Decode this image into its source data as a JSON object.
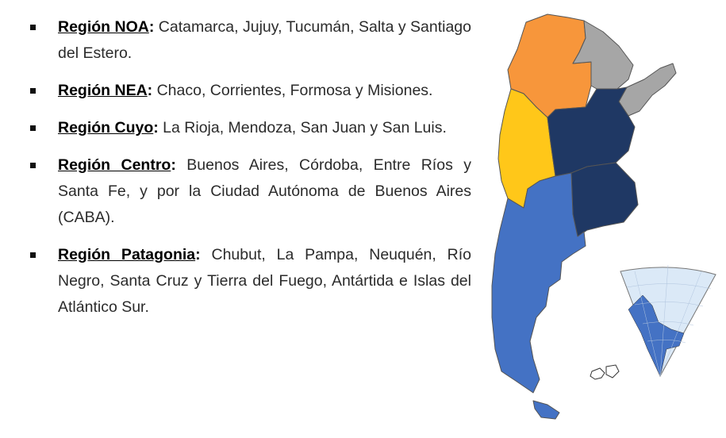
{
  "regions": [
    {
      "name": "Región NOA",
      "text": "Catamarca, Jujuy, Tucumán, Salta y Santiago del Estero."
    },
    {
      "name": "Región NEA",
      "text": "Chaco, Corrientes, Formosa y Misiones."
    },
    {
      "name": "Región Cuyo",
      "text": "La Rioja, Mendoza, San Juan y San Luis."
    },
    {
      "name": "Región Centro",
      "text": "Buenos Aires, Córdoba, Entre Ríos y Santa Fe, y por la Ciudad Autónoma de Buenos Aires (CABA)."
    },
    {
      "name": "Región Patagonia",
      "text": "Chubut, La Pampa, Neuquén, Río Negro, Santa Cruz y Tierra del Fuego, Antártida e Islas del Atlántico Sur."
    }
  ],
  "colors": {
    "noa": "#f7963b",
    "nea": "#a6a6a6",
    "cuyo": "#ffc719",
    "centro": "#1f3864",
    "patagonia": "#4472c4",
    "antarctic_sea": "#dbe9f7"
  }
}
